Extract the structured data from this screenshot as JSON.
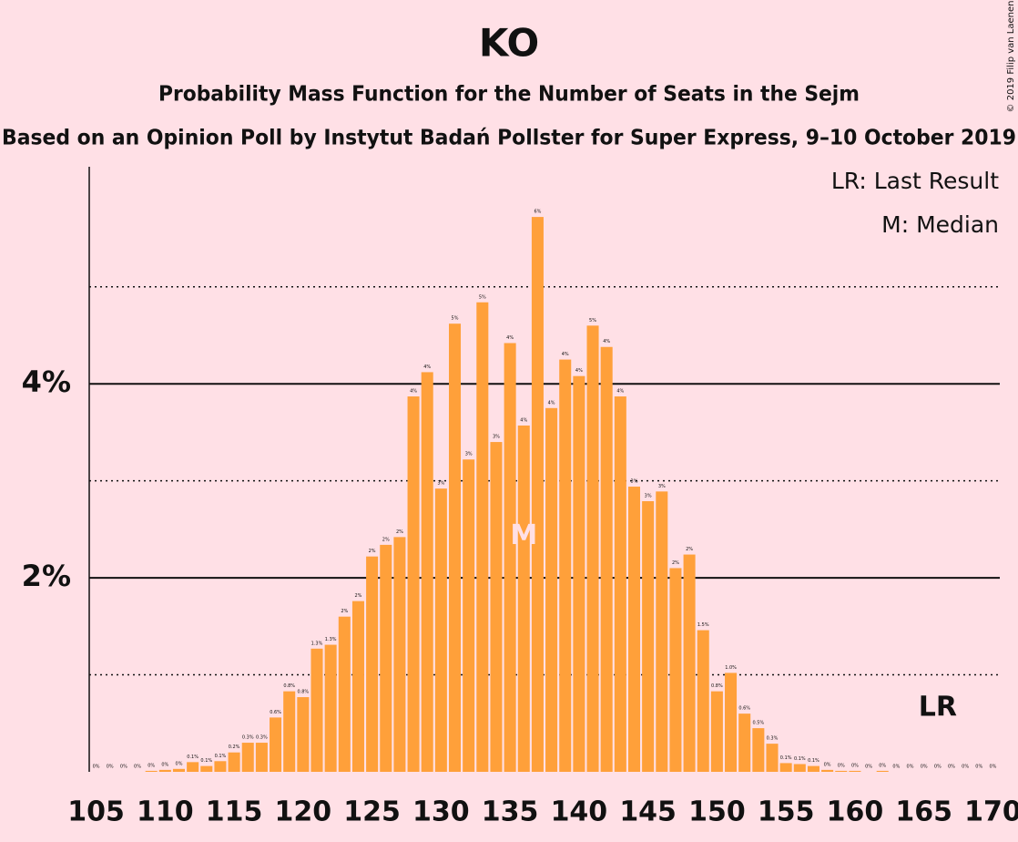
{
  "chart_data": {
    "type": "bar",
    "title": "KO",
    "subtitle": "Probability Mass Function for the Number of Seats in the Sejm",
    "subtitle2": "Based on an Opinion Poll by Instytut Badań Pollster for Super Express, 9–10 October 2019",
    "copyright": "© 2019 Filip van Laenen",
    "legend": [
      "LR: Last Result",
      "M: Median"
    ],
    "color": "#ffa03a",
    "x": [
      105,
      106,
      107,
      108,
      109,
      110,
      111,
      112,
      113,
      114,
      115,
      116,
      117,
      118,
      119,
      120,
      121,
      122,
      123,
      124,
      125,
      126,
      127,
      128,
      129,
      130,
      131,
      132,
      133,
      134,
      135,
      136,
      137,
      138,
      139,
      140,
      141,
      142,
      143,
      144,
      145,
      146,
      147,
      148,
      149,
      150,
      151,
      152,
      153,
      154,
      155,
      156,
      157,
      158,
      159,
      160,
      161,
      162,
      163,
      164,
      165,
      166,
      167,
      168,
      169,
      170
    ],
    "values": [
      0,
      0,
      0,
      0,
      0.01,
      0.02,
      0.03,
      0.1,
      0.06,
      0.11,
      0.2,
      0.3,
      0.3,
      0.56,
      0.83,
      0.77,
      1.27,
      1.31,
      1.6,
      1.76,
      2.22,
      2.34,
      2.42,
      3.87,
      4.12,
      2.92,
      4.62,
      3.22,
      4.84,
      3.4,
      4.42,
      3.57,
      5.72,
      3.75,
      4.25,
      4.08,
      4.6,
      4.38,
      3.87,
      2.94,
      2.79,
      2.89,
      2.1,
      2.24,
      1.46,
      0.83,
      1.02,
      0.6,
      0.45,
      0.29,
      0.09,
      0.08,
      0.06,
      0.02,
      0.01,
      0.01,
      0,
      0.01,
      0,
      0,
      0,
      0,
      0,
      0,
      0,
      0
    ],
    "value_labels": [
      "0%",
      "0%",
      "0%",
      "0%",
      "0%",
      "0%",
      "0%",
      "0.1%",
      "0.1%",
      "0.1%",
      "0.2%",
      "0.3%",
      "0.3%",
      "0.6%",
      "0.8%",
      "0.8%",
      "1.3%",
      "1.3%",
      "2%",
      "2%",
      "2%",
      "2%",
      "2%",
      "4%",
      "4%",
      "3%",
      "5%",
      "3%",
      "5%",
      "3%",
      "4%",
      "4%",
      "6%",
      "4%",
      "4%",
      "4%",
      "5%",
      "4%",
      "4%",
      "3%",
      "3%",
      "3%",
      "2%",
      "2%",
      "1.5%",
      "0.8%",
      "1.0%",
      "0.6%",
      "0.5%",
      "0.3%",
      "0.1%",
      "0.1%",
      "0.1%",
      "0%",
      "0%",
      "0%",
      "0%",
      "0%",
      "0%",
      "0%",
      "0%",
      "0%",
      "0%",
      "0%",
      "0%",
      "0%"
    ],
    "xlim": [
      104.5,
      170.5
    ],
    "xticks": [
      105,
      110,
      115,
      120,
      125,
      130,
      135,
      140,
      145,
      150,
      155,
      160,
      165,
      170
    ],
    "ylim": [
      0,
      6.2
    ],
    "yticks": [
      {
        "value": 2,
        "label": "2%"
      },
      {
        "value": 4,
        "label": "4%"
      }
    ],
    "minor_grid": [
      1,
      3,
      5
    ],
    "grid": true,
    "median": 136,
    "median_label": "M",
    "last_result": 166,
    "last_result_label": "LR"
  }
}
